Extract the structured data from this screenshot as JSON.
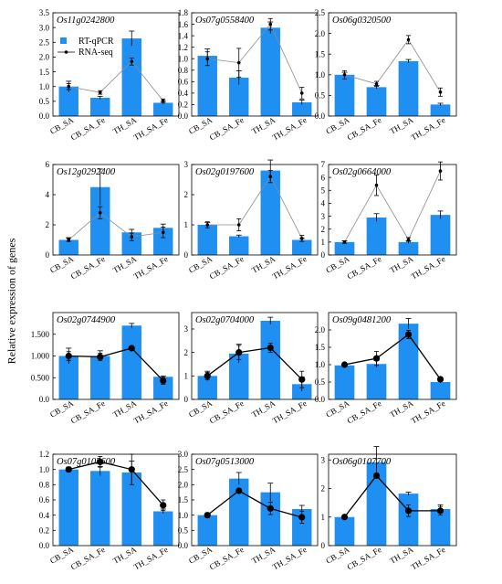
{
  "figure": {
    "ylabel": "Relative expression of genes",
    "legend": {
      "bar_label": "RT-qPCR",
      "line_label": "RNA-seq"
    },
    "colors": {
      "bar": "#1f8ff2",
      "line_thin": "#8c8c8c",
      "line_bold": "#000000",
      "marker": "#000000"
    }
  },
  "chart_data": [
    {
      "type": "bar",
      "title": "Os11g0242800",
      "categories": [
        "CB_SA",
        "CB_SA_Fe",
        "TH_SA",
        "TH_SA_Fe"
      ],
      "ylim": [
        0,
        3.5
      ],
      "ticks": [
        "0.0",
        "0.5",
        "1.0",
        "1.5",
        "2.0",
        "2.5",
        "3.0",
        "3.5"
      ],
      "series": [
        {
          "name": "RT-qPCR",
          "values": [
            1.0,
            0.62,
            2.63,
            0.45
          ],
          "errors": [
            0.18,
            0.05,
            0.25,
            0.05
          ]
        },
        {
          "name": "RNA-seq",
          "values": [
            1.0,
            0.8,
            1.85,
            0.52
          ],
          "errors": [
            0.1,
            0.06,
            0.12,
            0.06
          ]
        }
      ]
    },
    {
      "type": "bar",
      "title": "Os07g0558400",
      "categories": [
        "CB_SA",
        "CB_SA_Fe",
        "TH_SA",
        "TH_SA_Fe"
      ],
      "ylim": [
        0,
        1.8
      ],
      "ticks": [
        "0.0",
        "0.2",
        "0.4",
        "0.6",
        "0.8",
        "1.0",
        "1.2",
        "1.4",
        "1.6",
        "1.8"
      ],
      "series": [
        {
          "name": "RT-qPCR",
          "values": [
            1.05,
            0.67,
            1.54,
            0.24
          ],
          "errors": [
            0.12,
            0.12,
            0.1,
            0.04
          ]
        },
        {
          "name": "RNA-seq",
          "values": [
            1.0,
            0.93,
            1.6,
            0.4
          ],
          "errors": [
            0.12,
            0.25,
            0.1,
            0.1
          ]
        }
      ]
    },
    {
      "type": "bar",
      "title": "Os06g0320500",
      "categories": [
        "CB_SA",
        "CB_SA_Fe",
        "TH_SA",
        "TH_SA_Fe"
      ],
      "ylim": [
        0,
        2.5
      ],
      "ticks": [
        "0.0",
        "0.5",
        "1.0",
        "1.5",
        "2.0",
        "2.5"
      ],
      "series": [
        {
          "name": "RT-qPCR",
          "values": [
            1.0,
            0.7,
            1.33,
            0.28
          ],
          "errors": [
            0.06,
            0.04,
            0.04,
            0.03
          ]
        },
        {
          "name": "RNA-seq",
          "values": [
            1.0,
            0.78,
            1.85,
            0.58
          ],
          "errors": [
            0.1,
            0.06,
            0.1,
            0.1
          ]
        }
      ]
    },
    {
      "type": "bar",
      "title": "Os12g0292400",
      "categories": [
        "CB_SA",
        "CB_SA_Fe",
        "TH_SA",
        "TH_SA_Fe"
      ],
      "ylim": [
        0,
        6
      ],
      "ticks": [
        "0",
        "2",
        "4",
        "6"
      ],
      "series": [
        {
          "name": "RT-qPCR",
          "values": [
            1.0,
            4.5,
            1.5,
            1.8
          ],
          "errors": [
            0.15,
            1.2,
            0.2,
            0.25
          ]
        },
        {
          "name": "RNA-seq",
          "values": [
            1.0,
            2.8,
            1.2,
            1.5
          ],
          "errors": [
            0.1,
            0.4,
            0.25,
            0.35
          ]
        }
      ]
    },
    {
      "type": "bar",
      "title": "Os02g0197600",
      "categories": [
        "CB_SA",
        "CB_SA_Fe",
        "TH_SA",
        "TH_SA_Fe"
      ],
      "ylim": [
        0,
        3
      ],
      "ticks": [
        "0",
        "1",
        "2",
        "3"
      ],
      "series": [
        {
          "name": "RT-qPCR",
          "values": [
            1.0,
            0.62,
            2.8,
            0.5
          ],
          "errors": [
            0.08,
            0.04,
            0.35,
            0.05
          ]
        },
        {
          "name": "RNA-seq",
          "values": [
            1.0,
            1.0,
            2.6,
            0.55
          ],
          "errors": [
            0.1,
            0.2,
            0.2,
            0.1
          ]
        }
      ]
    },
    {
      "type": "bar",
      "title": "Os02g0664000",
      "categories": [
        "CB_SA",
        "CB_SA_Fe",
        "TH_SA",
        "TH_SA_Fe"
      ],
      "ylim": [
        0,
        7
      ],
      "ticks": [
        "0",
        "1",
        "2",
        "3",
        "4",
        "5",
        "6",
        "7"
      ],
      "series": [
        {
          "name": "RT-qPCR",
          "values": [
            1.0,
            2.9,
            1.0,
            3.1
          ],
          "errors": [
            0.1,
            0.3,
            0.1,
            0.3
          ]
        },
        {
          "name": "RNA-seq",
          "values": [
            1.0,
            5.4,
            1.2,
            6.5
          ],
          "errors": [
            0.1,
            0.8,
            0.15,
            0.7
          ]
        }
      ]
    },
    {
      "type": "bar",
      "title": "Os02g0744900",
      "categories": [
        "CB_SA",
        "CB_SA_Fe",
        "TH_SA",
        "TH_SA_Fe"
      ],
      "ylim": [
        0,
        2.0
      ],
      "ticks": [
        "0.0",
        "0.500",
        "1.000",
        "1.500"
      ],
      "series": [
        {
          "name": "RT-qPCR",
          "values": [
            1.0,
            1.0,
            1.7,
            0.52
          ],
          "errors": [
            0.18,
            0.12,
            0.05,
            0.02
          ]
        },
        {
          "name": "RNA-seq",
          "values": [
            1.0,
            0.98,
            1.18,
            0.43
          ],
          "errors": [
            0.1,
            0.08,
            0.02,
            0.08
          ]
        }
      ]
    },
    {
      "type": "bar",
      "title": "Os02g0704000",
      "categories": [
        "CB_SA",
        "CB_SA_Fe",
        "TH_SA",
        "TH_SA_Fe"
      ],
      "ylim": [
        0,
        3.7
      ],
      "ticks": [
        "0",
        "1",
        "2",
        "3"
      ],
      "series": [
        {
          "name": "RT-qPCR",
          "values": [
            1.0,
            1.95,
            3.35,
            0.65
          ],
          "errors": [
            0.2,
            0.4,
            0.15,
            0.3
          ]
        },
        {
          "name": "RNA-seq",
          "values": [
            1.0,
            2.0,
            2.2,
            0.85
          ],
          "errors": [
            0.15,
            0.3,
            0.2,
            0.35
          ]
        }
      ]
    },
    {
      "type": "bar",
      "title": "Os09g0481200",
      "categories": [
        "CB_SA",
        "CB_SA_Fe",
        "TH_SA",
        "TH_SA_Fe"
      ],
      "ylim": [
        0,
        2.5
      ],
      "ticks": [
        "0.0",
        "0.5",
        "1.0",
        "1.5",
        "2.0"
      ],
      "series": [
        {
          "name": "RT-qPCR",
          "values": [
            0.98,
            1.02,
            2.18,
            0.5
          ],
          "errors": [
            0.05,
            0.1,
            0.15,
            0.03
          ]
        },
        {
          "name": "RNA-seq",
          "values": [
            1.0,
            1.18,
            1.87,
            0.58
          ],
          "errors": [
            0.05,
            0.2,
            0.12,
            0.06
          ]
        }
      ]
    },
    {
      "type": "bar",
      "title": "Os07g0105600",
      "categories": [
        "CB_SA",
        "CB_SA_Fe",
        "TH_SA",
        "TH_SA_Fe"
      ],
      "ylim": [
        0,
        1.2
      ],
      "ticks": [
        "0.0",
        "0.2",
        "0.4",
        "0.6",
        "0.8",
        "1.0",
        "1.2"
      ],
      "series": [
        {
          "name": "RT-qPCR",
          "values": [
            1.0,
            0.98,
            0.96,
            0.45
          ],
          "errors": [
            0.03,
            0.06,
            0.15,
            0.03
          ]
        },
        {
          "name": "RNA-seq",
          "values": [
            1.0,
            1.1,
            1.0,
            0.53
          ],
          "errors": [
            0.03,
            0.07,
            0.2,
            0.07
          ]
        }
      ]
    },
    {
      "type": "bar",
      "title": "Os07g0513000",
      "categories": [
        "CB_SA",
        "CB_SA_Fe",
        "TH_SA",
        "TH_SA_Fe"
      ],
      "ylim": [
        0,
        3.0
      ],
      "ticks": [
        "0.0",
        "0.5",
        "1.0",
        "1.5",
        "2.0",
        "2.5",
        "3.0"
      ],
      "series": [
        {
          "name": "RT-qPCR",
          "values": [
            1.0,
            2.2,
            1.75,
            1.2
          ],
          "errors": [
            0.05,
            0.2,
            0.3,
            0.12
          ]
        },
        {
          "name": "RNA-seq",
          "values": [
            1.0,
            1.8,
            1.22,
            0.93
          ],
          "errors": [
            0.08,
            0.06,
            0.2,
            0.2
          ]
        }
      ]
    },
    {
      "type": "bar",
      "title": "Os06g0107700",
      "categories": [
        "CB_SA",
        "CB_SA_Fe",
        "TH_SA",
        "TH_SA_Fe"
      ],
      "ylim": [
        0,
        3.2
      ],
      "ticks": [
        "0",
        "1",
        "2",
        "3"
      ],
      "series": [
        {
          "name": "RT-qPCR",
          "values": [
            1.0,
            2.92,
            1.82,
            1.28
          ],
          "errors": [
            0.03,
            0.55,
            0.05,
            0.15
          ]
        },
        {
          "name": "RNA-seq",
          "values": [
            1.0,
            2.45,
            1.22,
            1.22
          ],
          "errors": [
            0.05,
            0.08,
            0.2,
            0.15
          ]
        }
      ]
    }
  ]
}
